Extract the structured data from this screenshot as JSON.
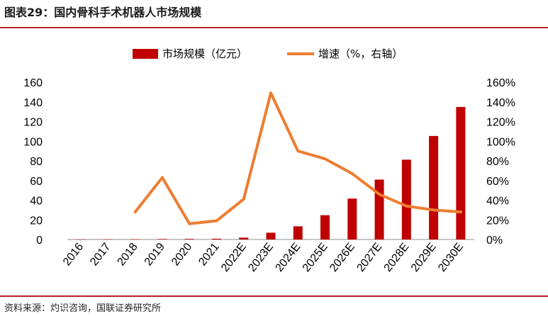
{
  "title": "图表29：国内骨科手术机器人市场规模",
  "source": "资料来源：灼识咨询，国联证券研究所",
  "colors": {
    "bar": "#c00000",
    "line": "#ed7d31",
    "accent": "#b8242a"
  },
  "chart_data": {
    "type": "bar+line",
    "categories": [
      "2016",
      "2017",
      "2018",
      "2019",
      "2020",
      "2021",
      "2022E",
      "2023E",
      "2024E",
      "2025E",
      "2026E",
      "2027E",
      "2028E",
      "2029E",
      "2030E"
    ],
    "series": [
      {
        "name": "市场规模（亿元）",
        "type": "bar",
        "axis": "left",
        "values": [
          0.1,
          0.2,
          0.3,
          0.5,
          0.6,
          0.8,
          1.9,
          6.9,
          13.4,
          24.7,
          41.6,
          60.9,
          81.2,
          105.3,
          134.8
        ]
      },
      {
        "name": "增速（%，右轴）",
        "type": "line",
        "axis": "right",
        "values": [
          null,
          null,
          28,
          63,
          16,
          19,
          41,
          149,
          90,
          82,
          67,
          46,
          34,
          30,
          28
        ]
      }
    ],
    "y_left": {
      "min": 0,
      "max": 160,
      "ticks": [
        "0",
        "20",
        "40",
        "60",
        "80",
        "100",
        "120",
        "140",
        "160"
      ]
    },
    "y_right": {
      "min": 0,
      "max": 160,
      "ticks": [
        "0%",
        "20%",
        "40%",
        "60%",
        "80%",
        "100%",
        "120%",
        "140%",
        "160%"
      ]
    },
    "legend_position": "top-center"
  }
}
